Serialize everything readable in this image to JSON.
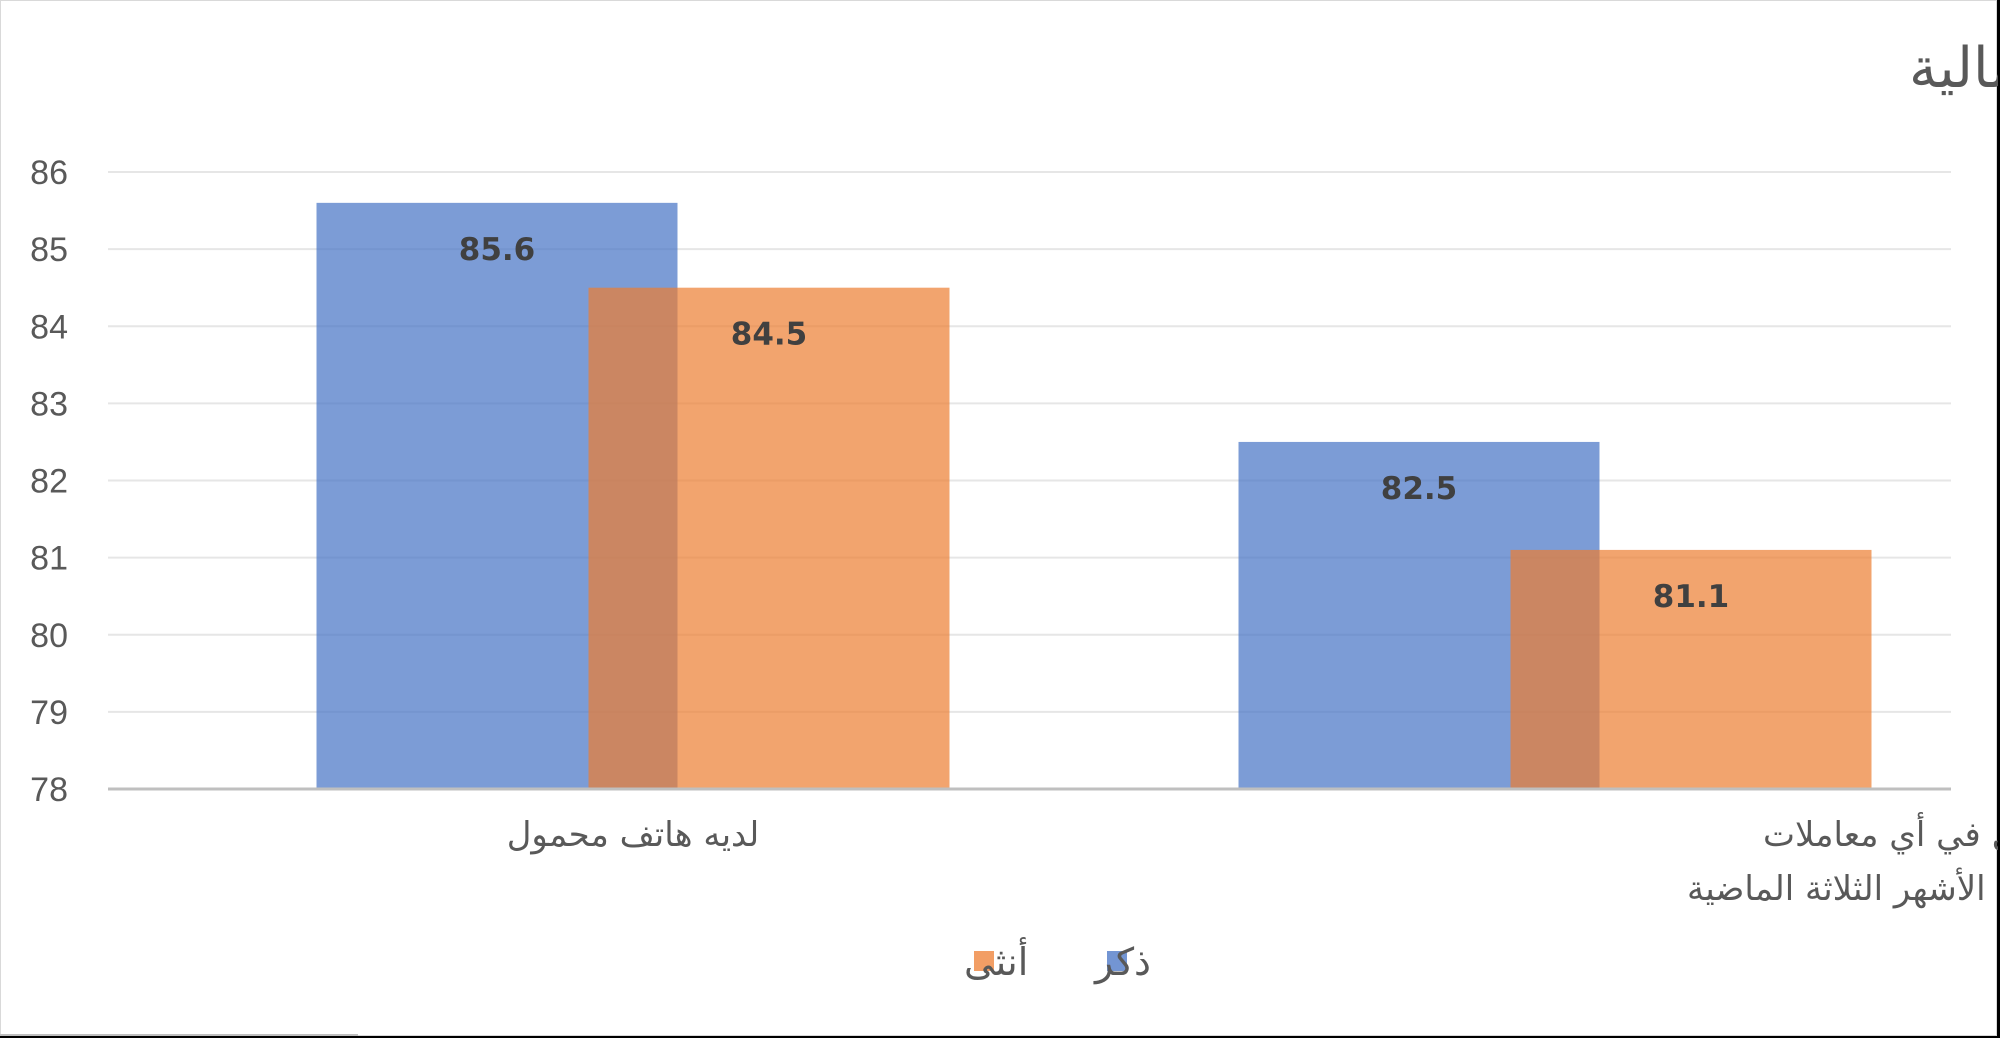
{
  "chart_data": {
    "type": "bar",
    "title": "ملكية الهاتف المحمول واستخدامه في المعاملات المالية",
    "categories": [
      [
        "لديه هاتف محمول"
      ],
      [
        "استخدام الهاتف المحمول في أي معاملات",
        "مالية في الأشهر الثلاثة الماضية"
      ]
    ],
    "series": [
      {
        "name": "ذكر",
        "color": "#4472c4",
        "values": [
          85.6,
          82.5
        ]
      },
      {
        "name": "أنثى",
        "color": "#ed7d31",
        "values": [
          84.5,
          81.1
        ]
      }
    ],
    "ylim": [
      78,
      86
    ],
    "yticks": [
      78,
      79,
      80,
      81,
      82,
      83,
      84,
      85,
      86
    ],
    "grid": true,
    "legend": "bottom-center",
    "bar_overlap": true
  }
}
